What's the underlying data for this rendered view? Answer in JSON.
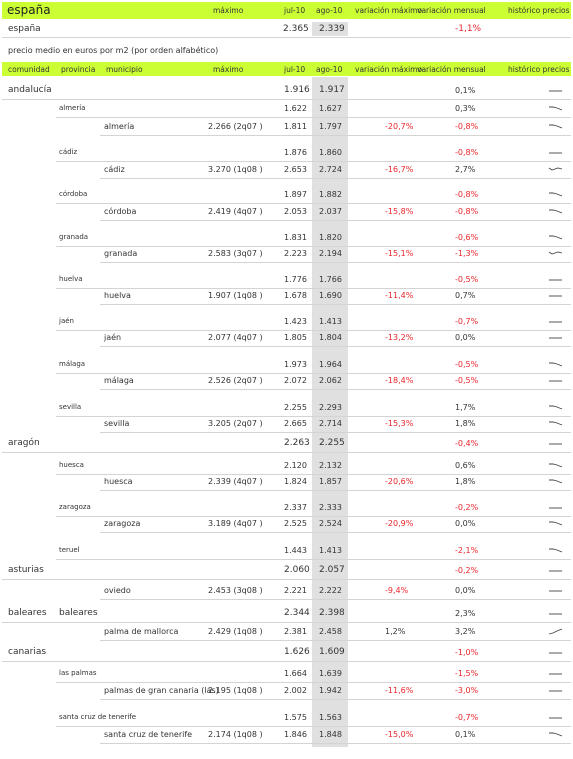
{
  "colors": {
    "accent": "#ccff33",
    "negative": "#e8262b",
    "column_highlight": "#e0e0e0"
  },
  "top": {
    "title": "españa",
    "headers": {
      "max": "máximo",
      "jul": "jul-10",
      "ago": "ago-10",
      "var_max": "variación máximo",
      "var_mens": "variación mensual",
      "hist": "histórico precios"
    },
    "row": {
      "name": "españa",
      "jul": "2.365",
      "ago": "2.339",
      "var_mens": "-1,1%"
    }
  },
  "note": "precio medio en euros por m2 (por orden alfabético)",
  "table": {
    "headers": {
      "comunidad": "comunidad",
      "provincia": "provincia",
      "municipio": "municipio",
      "max": "máximo",
      "jul": "jul-10",
      "ago": "ago-10",
      "var_max": "variación máximo",
      "var_mens": "variación mensual",
      "hist": "histórico precios"
    },
    "rows": [
      {
        "level": "comunidad",
        "comunidad": "andalucía",
        "jul": "1.916",
        "ago": "1.917",
        "var_mens": "0,1%",
        "spark": "flat"
      },
      {
        "level": "provincia",
        "provincia": "almería",
        "jul": "1.622",
        "ago": "1.627",
        "var_mens": "0,3%",
        "spark": "down"
      },
      {
        "level": "municipio",
        "municipio": "almería",
        "max": "2.266 (2q07 )",
        "jul": "1.811",
        "ago": "1.797",
        "var_max": "-20,7%",
        "var_mens": "-0,8%",
        "spark": "down"
      },
      {
        "level": "provincia",
        "provincia": "cádiz",
        "jul": "1.876",
        "ago": "1.860",
        "var_mens": "-0,8%",
        "spark": "flat"
      },
      {
        "level": "municipio",
        "municipio": "cádiz",
        "max": "3.270 (1q08 )",
        "jul": "2.653",
        "ago": "2.724",
        "var_max": "-16,7%",
        "var_mens": "2,7%",
        "spark": "wave"
      },
      {
        "level": "provincia",
        "provincia": "córdoba",
        "jul": "1.897",
        "ago": "1.882",
        "var_mens": "-0,8%",
        "spark": "down"
      },
      {
        "level": "municipio",
        "municipio": "córdoba",
        "max": "2.419 (4q07 )",
        "jul": "2.053",
        "ago": "2.037",
        "var_max": "-15,8%",
        "var_mens": "-0,8%",
        "spark": "down"
      },
      {
        "level": "provincia",
        "provincia": "granada",
        "jul": "1.831",
        "ago": "1.820",
        "var_mens": "-0,6%",
        "spark": "down"
      },
      {
        "level": "municipio",
        "municipio": "granada",
        "max": "2.583 (3q07 )",
        "jul": "2.223",
        "ago": "2.194",
        "var_max": "-15,1%",
        "var_mens": "-1,3%",
        "spark": "wave"
      },
      {
        "level": "provincia",
        "provincia": "huelva",
        "jul": "1.776",
        "ago": "1.766",
        "var_mens": "-0,5%",
        "spark": "flat"
      },
      {
        "level": "municipio",
        "municipio": "huelva",
        "max": "1.907 (1q08 )",
        "jul": "1.678",
        "ago": "1.690",
        "var_max": "-11,4%",
        "var_mens": "0,7%",
        "spark": "flat"
      },
      {
        "level": "provincia",
        "provincia": "jaén",
        "jul": "1.423",
        "ago": "1.413",
        "var_mens": "-0,7%",
        "spark": "flat"
      },
      {
        "level": "municipio",
        "municipio": "jaén",
        "max": "2.077 (4q07 )",
        "jul": "1.805",
        "ago": "1.804",
        "var_max": "-13,2%",
        "var_mens": "0,0%",
        "spark": "flat"
      },
      {
        "level": "provincia",
        "provincia": "málaga",
        "jul": "1.973",
        "ago": "1.964",
        "var_mens": "-0,5%",
        "spark": "down"
      },
      {
        "level": "municipio",
        "municipio": "málaga",
        "max": "2.526 (2q07 )",
        "jul": "2.072",
        "ago": "2.062",
        "var_max": "-18,4%",
        "var_mens": "-0,5%",
        "spark": "flat"
      },
      {
        "level": "provincia",
        "provincia": "sevilla",
        "jul": "2.255",
        "ago": "2.293",
        "var_mens": "1,7%",
        "spark": "down"
      },
      {
        "level": "municipio",
        "municipio": "sevilla",
        "max": "3.205 (2q07 )",
        "jul": "2.665",
        "ago": "2.714",
        "var_max": "-15,3%",
        "var_mens": "1,8%",
        "spark": "down"
      },
      {
        "level": "comunidad",
        "comunidad": "aragón",
        "jul": "2.263",
        "ago": "2.255",
        "var_mens": "-0,4%",
        "spark": "flat"
      },
      {
        "level": "provincia",
        "provincia": "huesca",
        "jul": "2.120",
        "ago": "2.132",
        "var_mens": "0,6%",
        "spark": "down"
      },
      {
        "level": "municipio",
        "municipio": "huesca",
        "max": "2.339 (4q07 )",
        "jul": "1.824",
        "ago": "1.857",
        "var_max": "-20,6%",
        "var_mens": "1,8%",
        "spark": "down"
      },
      {
        "level": "provincia",
        "provincia": "zaragoza",
        "jul": "2.337",
        "ago": "2.333",
        "var_mens": "-0,2%",
        "spark": "flat"
      },
      {
        "level": "municipio",
        "municipio": "zaragoza",
        "max": "3.189 (4q07 )",
        "jul": "2.525",
        "ago": "2.524",
        "var_max": "-20,9%",
        "var_mens": "0,0%",
        "spark": "down"
      },
      {
        "level": "provincia",
        "provincia": "teruel",
        "jul": "1.443",
        "ago": "1.413",
        "var_mens": "-2,1%",
        "spark": "down"
      },
      {
        "level": "comunidad",
        "comunidad": "asturias",
        "jul": "2.060",
        "ago": "2.057",
        "var_mens": "-0,2%",
        "spark": "flat"
      },
      {
        "level": "municipio",
        "municipio": "oviedo",
        "max": "2.453 (3q08 )",
        "jul": "2.221",
        "ago": "2.222",
        "var_max": "-9,4%",
        "var_mens": "0,0%",
        "spark": "flat"
      },
      {
        "level": "comunidad",
        "comunidad": "baleares",
        "provincia": "baleares",
        "jul": "2.344",
        "ago": "2.398",
        "var_mens": "2,3%",
        "spark": "flat"
      },
      {
        "level": "municipio",
        "municipio": "palma de mallorca",
        "max": "2.429 (1q08 )",
        "jul": "2.381",
        "ago": "2.458",
        "var_max": "1,2%",
        "var_mens": "3,2%",
        "spark": "up"
      },
      {
        "level": "comunidad",
        "comunidad": "canarias",
        "jul": "1.626",
        "ago": "1.609",
        "var_mens": "-1,0%",
        "spark": "flat"
      },
      {
        "level": "provincia",
        "provincia": "las palmas",
        "jul": "1.664",
        "ago": "1.639",
        "var_mens": "-1,5%",
        "spark": "flat"
      },
      {
        "level": "municipio",
        "municipio": "palmas de gran canaria (las)",
        "max": "2.195 (1q08 )",
        "jul": "2.002",
        "ago": "1.942",
        "var_max": "-11,6%",
        "var_mens": "-3,0%",
        "spark": "flat"
      },
      {
        "level": "provincia",
        "provincia": "santa cruz de tenerife",
        "jul": "1.575",
        "ago": "1.563",
        "var_mens": "-0,7%",
        "spark": "flat"
      },
      {
        "level": "municipio",
        "municipio": "santa cruz de tenerife",
        "max": "2.174 (1q08 )",
        "jul": "1.846",
        "ago": "1.848",
        "var_max": "-15,0%",
        "var_mens": "0,1%",
        "spark": "down"
      }
    ]
  }
}
